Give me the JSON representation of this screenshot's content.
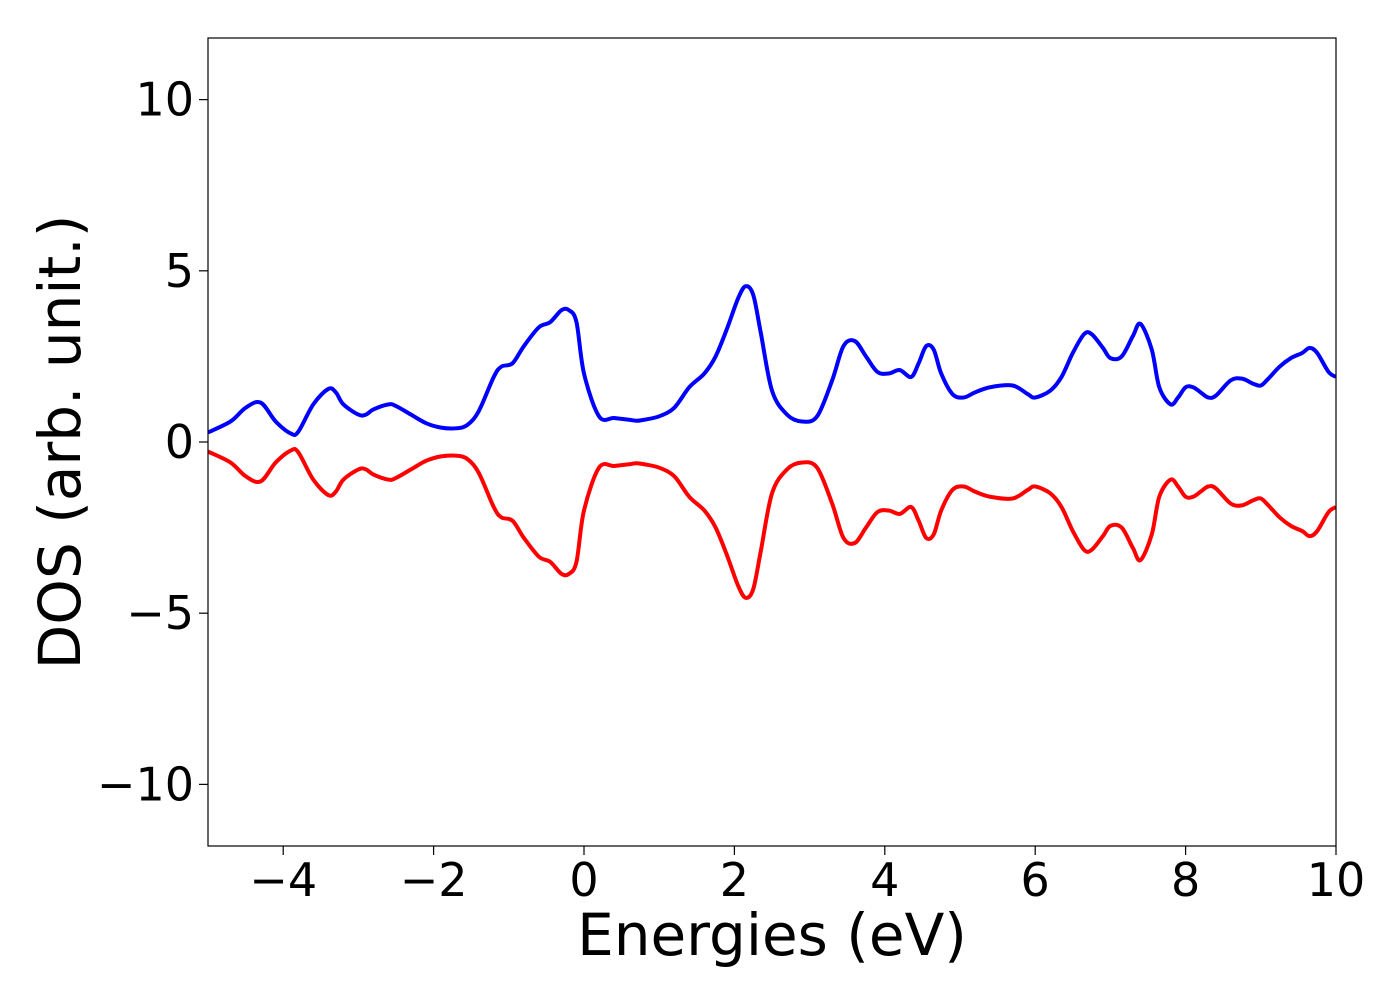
{
  "chart_data": {
    "type": "line",
    "xlabel": "Energies (eV)",
    "ylabel": "DOS (arb. unit.)",
    "xlim": [
      -5,
      10
    ],
    "ylim": [
      -11.8,
      11.8
    ],
    "xticks": [
      -4,
      -2,
      0,
      2,
      4,
      6,
      8,
      10
    ],
    "xtick_labels": [
      "−4",
      "−2",
      "0",
      "2",
      "4",
      "6",
      "8",
      "10"
    ],
    "yticks": [
      -10,
      -5,
      0,
      5,
      10
    ],
    "ytick_labels": [
      "−10",
      "−5",
      "0",
      "5",
      "10"
    ],
    "grid": false,
    "legend": "none",
    "series": [
      {
        "color": "#0000ff",
        "x": [
          -5,
          -4.7,
          -4.5,
          -4.3,
          -4.1,
          -3.9,
          -3.8,
          -3.6,
          -3.4,
          -3.3,
          -3.2,
          -3.0,
          -2.9,
          -2.8,
          -2.6,
          -2.5,
          -2.3,
          -2.1,
          -1.9,
          -1.7,
          -1.55,
          -1.4,
          -1.2,
          -1.1,
          -0.95,
          -0.8,
          -0.6,
          -0.45,
          -0.3,
          -0.2,
          -0.1,
          0.0,
          0.2,
          0.4,
          0.6,
          0.7,
          0.8,
          1.0,
          1.2,
          1.4,
          1.6,
          1.75,
          1.9,
          2.05,
          2.15,
          2.25,
          2.35,
          2.5,
          2.7,
          2.9,
          3.1,
          3.3,
          3.45,
          3.6,
          3.75,
          3.9,
          4.05,
          4.2,
          4.35,
          4.45,
          4.55,
          4.65,
          4.75,
          4.9,
          5.05,
          5.2,
          5.4,
          5.7,
          5.9,
          6.0,
          6.2,
          6.35,
          6.5,
          6.65,
          6.75,
          6.9,
          7.0,
          7.15,
          7.3,
          7.4,
          7.55,
          7.65,
          7.8,
          7.9,
          8.0,
          8.1,
          8.2,
          8.3,
          8.4,
          8.6,
          8.75,
          8.9,
          9.0,
          9.1,
          9.25,
          9.4,
          9.55,
          9.65,
          9.75,
          9.9,
          10.0
        ],
        "y": [
          0.28,
          0.6,
          1.0,
          1.15,
          0.6,
          0.25,
          0.3,
          1.1,
          1.55,
          1.45,
          1.1,
          0.8,
          0.8,
          0.95,
          1.1,
          1.05,
          0.8,
          0.55,
          0.42,
          0.4,
          0.5,
          0.9,
          1.9,
          2.2,
          2.3,
          2.8,
          3.35,
          3.5,
          3.85,
          3.85,
          3.5,
          2.0,
          0.75,
          0.7,
          0.65,
          0.62,
          0.65,
          0.75,
          1.0,
          1.6,
          2.0,
          2.5,
          3.3,
          4.2,
          4.55,
          4.3,
          3.2,
          1.5,
          0.8,
          0.6,
          0.75,
          1.8,
          2.8,
          2.95,
          2.5,
          2.05,
          2.0,
          2.1,
          1.9,
          2.3,
          2.8,
          2.7,
          2.0,
          1.4,
          1.3,
          1.45,
          1.6,
          1.65,
          1.4,
          1.3,
          1.5,
          1.9,
          2.6,
          3.15,
          3.15,
          2.75,
          2.45,
          2.5,
          3.1,
          3.45,
          2.7,
          1.6,
          1.1,
          1.3,
          1.6,
          1.6,
          1.45,
          1.3,
          1.35,
          1.8,
          1.85,
          1.7,
          1.65,
          1.85,
          2.2,
          2.45,
          2.6,
          2.75,
          2.6,
          2.05,
          1.9
        ]
      },
      {
        "color": "#ff0000",
        "x": [
          -5,
          -4.7,
          -4.5,
          -4.3,
          -4.1,
          -3.9,
          -3.8,
          -3.6,
          -3.4,
          -3.3,
          -3.2,
          -3.0,
          -2.9,
          -2.8,
          -2.6,
          -2.5,
          -2.3,
          -2.1,
          -1.9,
          -1.7,
          -1.55,
          -1.4,
          -1.2,
          -1.1,
          -0.95,
          -0.8,
          -0.6,
          -0.45,
          -0.3,
          -0.2,
          -0.1,
          0.0,
          0.2,
          0.4,
          0.6,
          0.7,
          0.8,
          1.0,
          1.2,
          1.4,
          1.6,
          1.75,
          1.9,
          2.05,
          2.15,
          2.25,
          2.35,
          2.5,
          2.7,
          2.9,
          3.1,
          3.3,
          3.45,
          3.6,
          3.75,
          3.9,
          4.05,
          4.2,
          4.35,
          4.45,
          4.55,
          4.65,
          4.75,
          4.9,
          5.05,
          5.2,
          5.4,
          5.7,
          5.9,
          6.0,
          6.2,
          6.35,
          6.5,
          6.65,
          6.75,
          6.9,
          7.0,
          7.15,
          7.3,
          7.4,
          7.55,
          7.65,
          7.8,
          7.9,
          8.0,
          8.1,
          8.2,
          8.3,
          8.4,
          8.6,
          8.75,
          8.9,
          9.0,
          9.1,
          9.25,
          9.4,
          9.55,
          9.65,
          9.75,
          9.9,
          10.0
        ],
        "y": [
          -0.28,
          -0.6,
          -1.0,
          -1.15,
          -0.6,
          -0.25,
          -0.3,
          -1.1,
          -1.55,
          -1.45,
          -1.1,
          -0.8,
          -0.8,
          -0.95,
          -1.1,
          -1.05,
          -0.8,
          -0.55,
          -0.42,
          -0.4,
          -0.5,
          -0.9,
          -1.9,
          -2.2,
          -2.3,
          -2.8,
          -3.35,
          -3.5,
          -3.85,
          -3.85,
          -3.5,
          -2.0,
          -0.75,
          -0.7,
          -0.65,
          -0.62,
          -0.65,
          -0.75,
          -1.0,
          -1.6,
          -2.0,
          -2.5,
          -3.3,
          -4.2,
          -4.55,
          -4.3,
          -3.2,
          -1.5,
          -0.8,
          -0.6,
          -0.75,
          -1.8,
          -2.8,
          -2.95,
          -2.5,
          -2.05,
          -2.0,
          -2.1,
          -1.9,
          -2.3,
          -2.8,
          -2.7,
          -2.0,
          -1.4,
          -1.3,
          -1.45,
          -1.6,
          -1.65,
          -1.4,
          -1.3,
          -1.5,
          -1.9,
          -2.6,
          -3.15,
          -3.15,
          -2.75,
          -2.45,
          -2.5,
          -3.1,
          -3.45,
          -2.7,
          -1.6,
          -1.1,
          -1.3,
          -1.6,
          -1.6,
          -1.45,
          -1.3,
          -1.35,
          -1.8,
          -1.85,
          -1.7,
          -1.65,
          -1.85,
          -2.2,
          -2.45,
          -2.6,
          -2.75,
          -2.6,
          -2.05,
          -1.9
        ]
      }
    ]
  }
}
